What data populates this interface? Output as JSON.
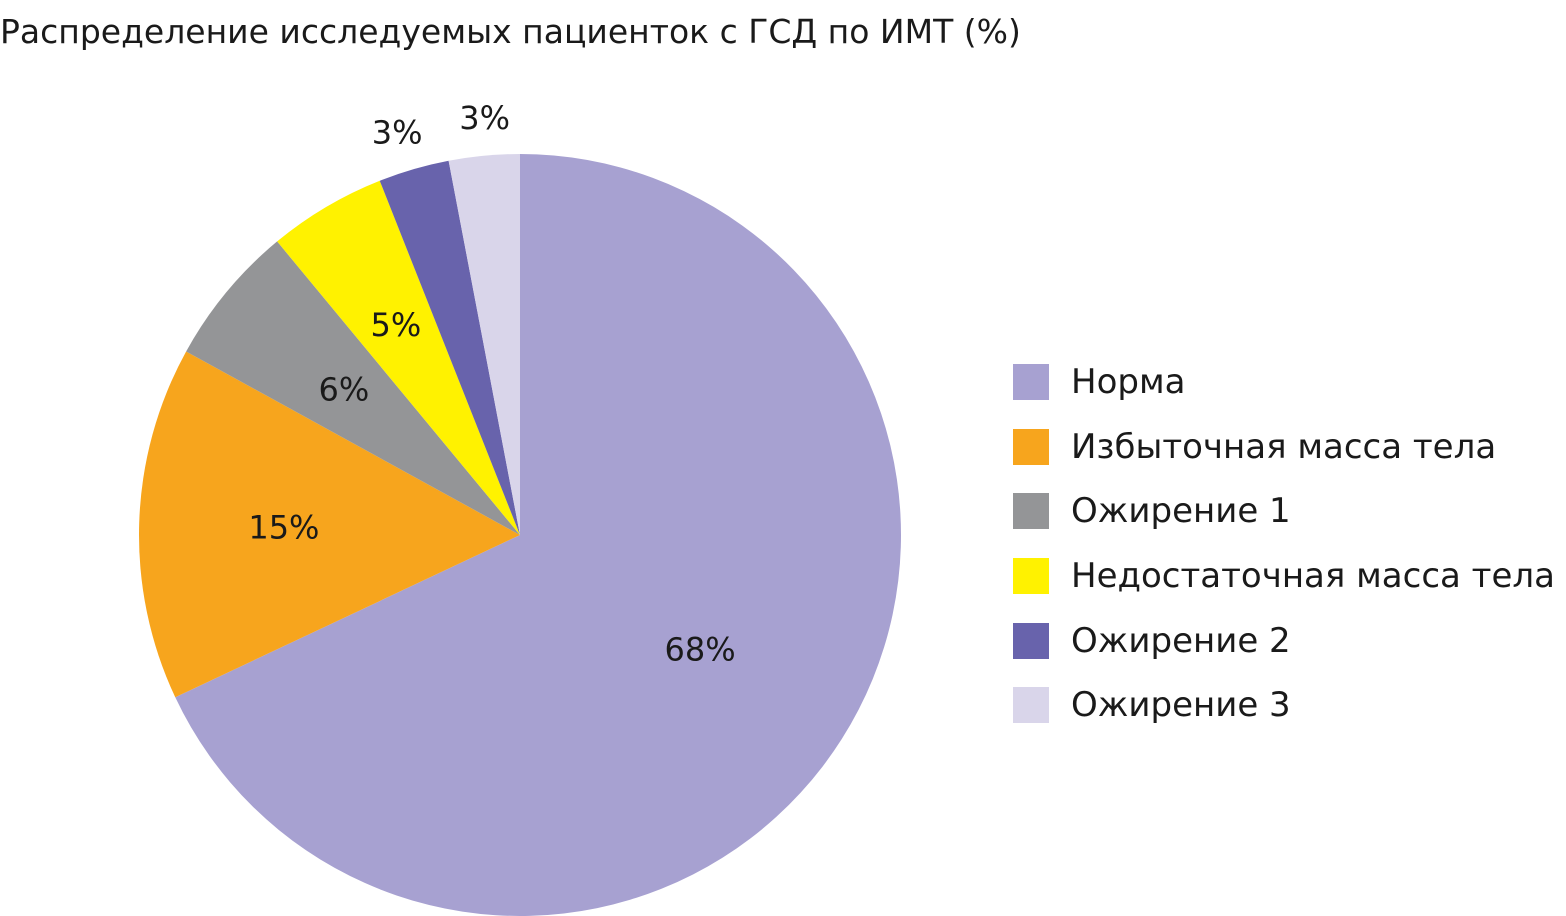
{
  "chart_data": {
    "type": "pie",
    "title": "Распределение исследуемых пациенток с ГСД по ИМТ (%)",
    "legend_position": "right",
    "start": "top, clockwise",
    "slices": [
      {
        "name": "Норма",
        "value": 68,
        "label": "68%",
        "color": "#a7a1d1"
      },
      {
        "name": "Избыточная масса тела",
        "value": 15,
        "label": "15%",
        "color": "#f7a51d"
      },
      {
        "name": "Ожирение 1",
        "value": 6,
        "label": "6%",
        "color": "#949597"
      },
      {
        "name": "Недостаточная масса тела",
        "value": 5,
        "label": "5%",
        "color": "#fff200"
      },
      {
        "name": "Ожирение 2",
        "value": 3,
        "label": "3%",
        "color": "#6863ac"
      },
      {
        "name": "Ожирение 3",
        "value": 3,
        "label": "3%",
        "color": "#d9d5ea"
      }
    ]
  }
}
